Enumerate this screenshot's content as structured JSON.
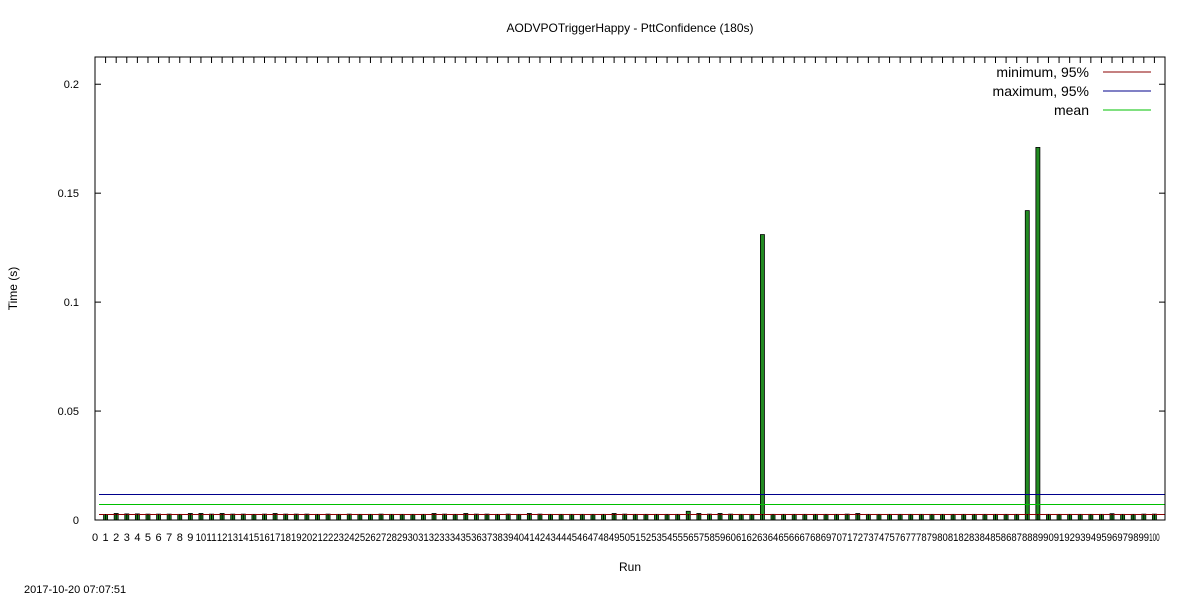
{
  "chart_data": {
    "type": "bar",
    "title": "AODVPOTriggerHappy - PttConfidence (180s)",
    "xlabel": "Run",
    "ylabel": "Time (s)",
    "xlim": [
      0,
      101
    ],
    "ylim": [
      0,
      0.2125
    ],
    "yticks": [
      0,
      0.05,
      0.1,
      0.15,
      0.2
    ],
    "ytick_labels": [
      "0",
      "0.05",
      "0.1",
      "0.15",
      "0.2"
    ],
    "x": [
      1,
      2,
      3,
      4,
      5,
      6,
      7,
      8,
      9,
      10,
      11,
      12,
      13,
      14,
      15,
      16,
      17,
      18,
      19,
      20,
      21,
      22,
      23,
      24,
      25,
      26,
      27,
      28,
      29,
      30,
      31,
      32,
      33,
      34,
      35,
      36,
      37,
      38,
      39,
      40,
      41,
      42,
      43,
      44,
      45,
      46,
      47,
      48,
      49,
      50,
      51,
      52,
      53,
      54,
      55,
      56,
      57,
      58,
      59,
      60,
      61,
      62,
      63,
      64,
      65,
      66,
      67,
      68,
      69,
      70,
      71,
      72,
      73,
      74,
      75,
      76,
      77,
      78,
      79,
      80,
      81,
      82,
      83,
      84,
      85,
      86,
      87,
      88,
      89,
      90,
      91,
      92,
      93,
      94,
      95,
      96,
      97,
      98,
      99,
      100
    ],
    "values": [
      0.0025,
      0.003,
      0.0028,
      0.0028,
      0.0027,
      0.0027,
      0.0027,
      0.0026,
      0.003,
      0.003,
      0.0027,
      0.003,
      0.0027,
      0.0027,
      0.0026,
      0.0027,
      0.003,
      0.0027,
      0.0027,
      0.0027,
      0.0026,
      0.0027,
      0.0026,
      0.0027,
      0.0026,
      0.0026,
      0.0027,
      0.0026,
      0.0026,
      0.0026,
      0.0026,
      0.003,
      0.0027,
      0.0026,
      0.003,
      0.0027,
      0.0027,
      0.0026,
      0.0027,
      0.0026,
      0.003,
      0.0027,
      0.0026,
      0.0026,
      0.0026,
      0.0026,
      0.0026,
      0.0026,
      0.003,
      0.0027,
      0.0026,
      0.0026,
      0.0026,
      0.0026,
      0.0026,
      0.004,
      0.003,
      0.0027,
      0.003,
      0.0027,
      0.0026,
      0.0026,
      0.131,
      0.0026,
      0.0026,
      0.0026,
      0.0026,
      0.0026,
      0.0026,
      0.0026,
      0.0027,
      0.003,
      0.0026,
      0.0026,
      0.0026,
      0.0026,
      0.0026,
      0.0026,
      0.0026,
      0.0026,
      0.0026,
      0.0026,
      0.0026,
      0.0026,
      0.0026,
      0.0026,
      0.0026,
      0.142,
      0.171,
      0.0026,
      0.0026,
      0.0026,
      0.0026,
      0.0026,
      0.0026,
      0.0029,
      0.0026,
      0.0026,
      0.0027,
      0.0027
    ],
    "series": [
      {
        "name": "minimum, 95%",
        "value": 0.0025,
        "color": "#8b0000"
      },
      {
        "name": "maximum, 95%",
        "value": 0.0117,
        "color": "#00008b"
      },
      {
        "name": "mean",
        "value": 0.0071,
        "color": "#00c000"
      }
    ],
    "bar_color": "#228b22",
    "bar_edge_color": "#000000",
    "legend_position": "top-right",
    "grid": false
  },
  "footer": {
    "timestamp": "2017-10-20 07:07:51"
  }
}
